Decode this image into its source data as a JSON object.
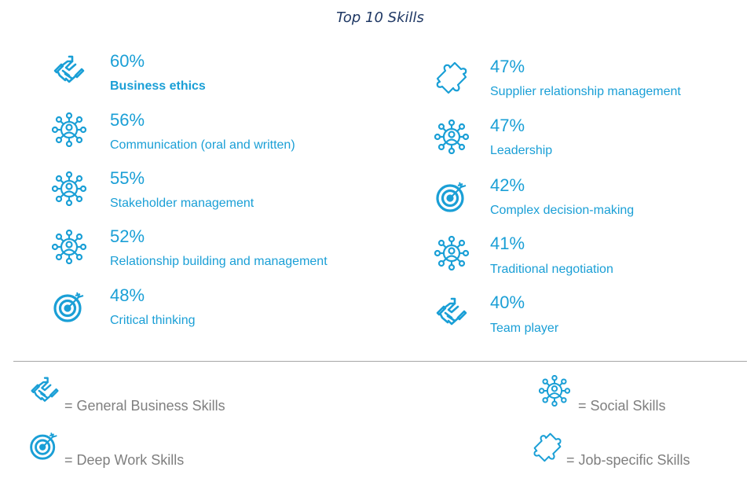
{
  "title": "Top 10 Skills",
  "accent_color": "#1a9fd6",
  "left_column": [
    {
      "percent": "60%",
      "label": "Business ethics",
      "icon": "handshake-icon"
    },
    {
      "percent": "56%",
      "label": "Communication (oral and written)",
      "icon": "social-network-icon"
    },
    {
      "percent": "55%",
      "label": "Stakeholder management",
      "icon": "social-network-icon"
    },
    {
      "percent": "52%",
      "label": "Relationship building and management",
      "icon": "social-network-icon"
    },
    {
      "percent": "48%",
      "label": "Critical thinking",
      "icon": "target-icon"
    }
  ],
  "right_column": [
    {
      "percent": "47%",
      "label": "Supplier relationship management",
      "icon": "puzzle-icon"
    },
    {
      "percent": "47%",
      "label": "Leadership",
      "icon": "social-network-icon"
    },
    {
      "percent": "42%",
      "label": "Complex decision-making",
      "icon": "target-icon"
    },
    {
      "percent": "41%",
      "label": "Traditional negotiation",
      "icon": "social-network-icon"
    },
    {
      "percent": "40%",
      "label": "Team player",
      "icon": "handshake-icon"
    }
  ],
  "legend": {
    "general": "= General Business Skills",
    "deep": "= Deep Work Skills",
    "social": "= Social Skills",
    "job": "= Job-specific Skills"
  }
}
